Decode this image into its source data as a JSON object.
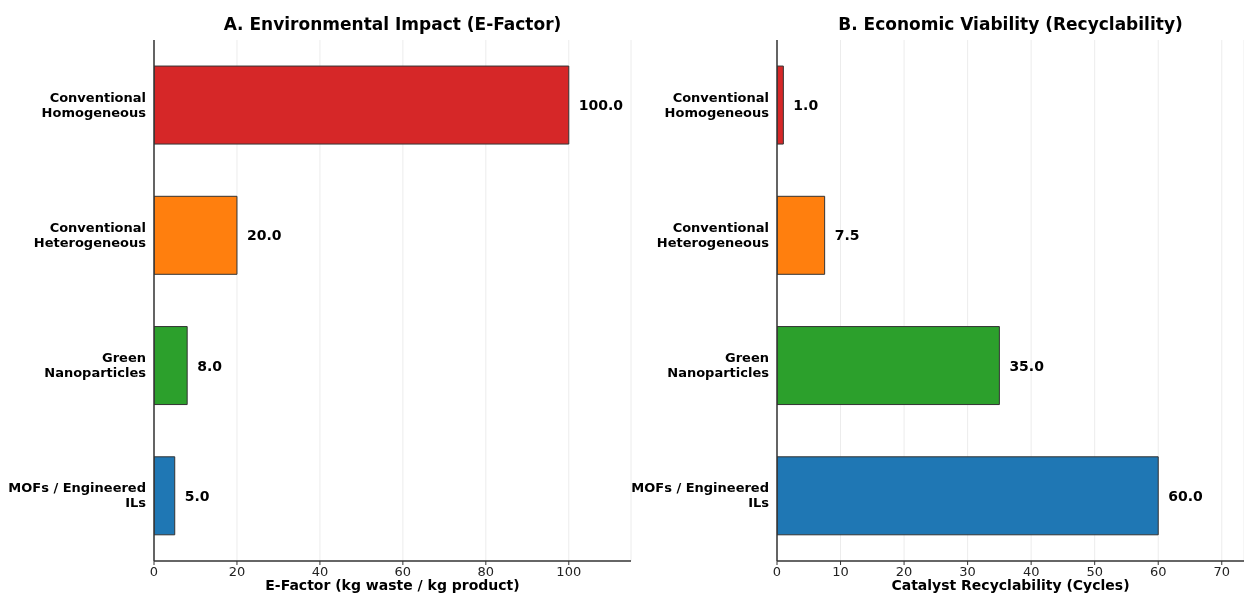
{
  "chart_data": [
    {
      "type": "bar",
      "orientation": "horizontal",
      "title": "A. Environmental Impact (E-Factor)",
      "xlabel": "E-Factor (kg waste / kg product)",
      "categories": [
        "Conventional\nHomogeneous",
        "Conventional\nHeterogeneous",
        "Green\nNanoparticles",
        "MOFs / Engineered\nILs"
      ],
      "values": [
        100,
        20,
        8,
        5
      ],
      "colors": [
        "#d62728",
        "#ff7f0e",
        "#2ca02c",
        "#1f77b4"
      ],
      "value_labels": [
        "100.0",
        "20.0",
        "8.0",
        "5.0"
      ],
      "xlim": [
        0,
        115
      ],
      "xticks": [
        0,
        20,
        40,
        60,
        80,
        100
      ],
      "grid": "x"
    },
    {
      "type": "bar",
      "orientation": "horizontal",
      "title": "B. Economic Viability (Recyclability)",
      "xlabel": "Catalyst Recyclability (Cycles)",
      "categories": [
        "Conventional\nHomogeneous",
        "Conventional\nHeterogeneous",
        "Green\nNanoparticles",
        "MOFs / Engineered\nILs"
      ],
      "values": [
        1,
        7.5,
        35,
        60
      ],
      "colors": [
        "#d62728",
        "#ff7f0e",
        "#2ca02c",
        "#1f77b4"
      ],
      "value_labels": [
        "1.0",
        "7.5",
        "35.0",
        "60.0"
      ],
      "xlim": [
        0,
        73.5
      ],
      "xticks": [
        0,
        10,
        20,
        30,
        40,
        50,
        60,
        70
      ],
      "grid": "x"
    }
  ]
}
